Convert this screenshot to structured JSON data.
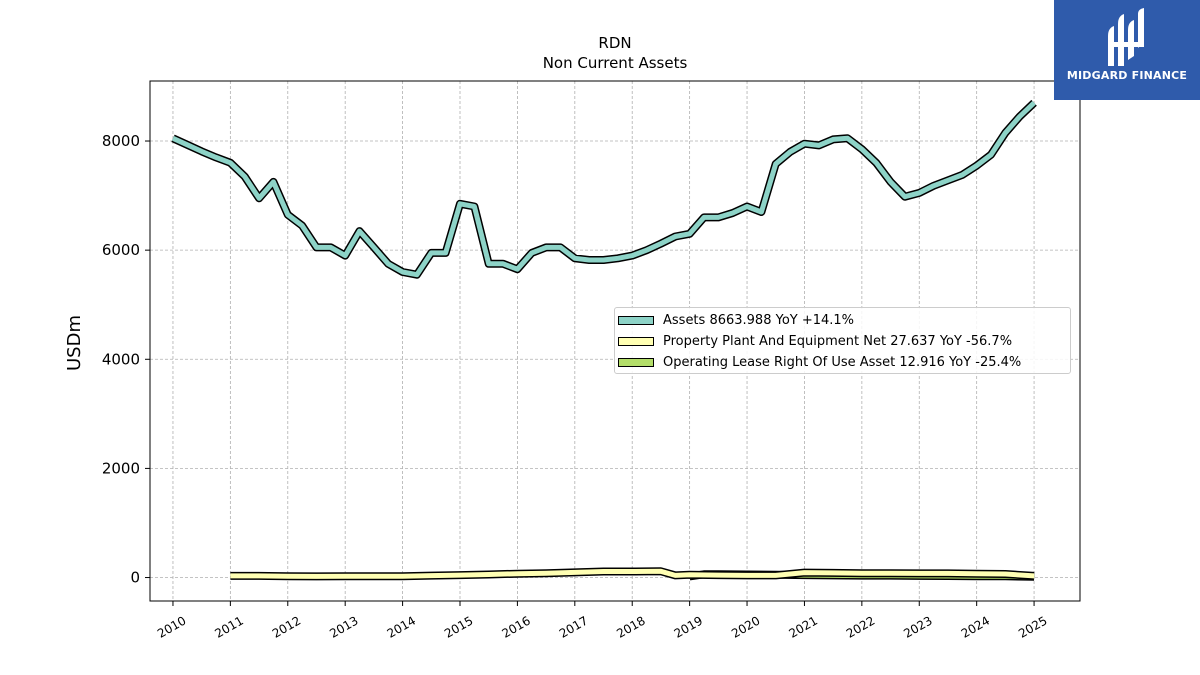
{
  "chart_data": {
    "type": "line",
    "title": "RDN",
    "subtitle": "Non Current  Assets",
    "ylabel": "USDm",
    "xlabel": "",
    "xlim": [
      2009.6,
      2025.8
    ],
    "ylim": [
      -430,
      9100
    ],
    "yticks": [
      0,
      2000,
      4000,
      6000,
      8000
    ],
    "xticks": [
      "2010",
      "2011",
      "2012",
      "2013",
      "2014",
      "2015",
      "2016",
      "2017",
      "2018",
      "2019",
      "2020",
      "2021",
      "2022",
      "2023",
      "2024",
      "2025"
    ],
    "grid": true,
    "legend_position": "center-right",
    "series": [
      {
        "name": "Assets  8663.988 YoY +14.1%",
        "color": "#8dd3c7",
        "x": [
          2010.0,
          2010.25,
          2010.5,
          2010.75,
          2011.0,
          2011.25,
          2011.5,
          2011.75,
          2012.0,
          2012.25,
          2012.5,
          2012.75,
          2013.0,
          2013.25,
          2013.5,
          2013.75,
          2014.0,
          2014.25,
          2014.5,
          2014.75,
          2015.0,
          2015.25,
          2015.5,
          2015.75,
          2016.0,
          2016.25,
          2016.5,
          2016.75,
          2017.0,
          2017.25,
          2017.5,
          2017.75,
          2018.0,
          2018.25,
          2018.5,
          2018.75,
          2019.0,
          2019.25,
          2019.5,
          2019.75,
          2020.0,
          2020.25,
          2020.5,
          2020.75,
          2021.0,
          2021.25,
          2021.5,
          2021.75,
          2022.0,
          2022.25,
          2022.5,
          2022.75,
          2023.0,
          2023.25,
          2023.5,
          2023.75,
          2024.0,
          2024.25,
          2024.5,
          2024.75,
          2025.0
        ],
        "values": [
          8050,
          7930,
          7810,
          7700,
          7600,
          7350,
          6950,
          7250,
          6650,
          6450,
          6050,
          6050,
          5900,
          6350,
          6050,
          5750,
          5600,
          5550,
          5950,
          5950,
          6850,
          6800,
          5750,
          5750,
          5650,
          5950,
          6050,
          6050,
          5850,
          5820,
          5820,
          5850,
          5900,
          6000,
          6120,
          6250,
          6300,
          6600,
          6600,
          6680,
          6800,
          6700,
          7580,
          7800,
          7950,
          7920,
          8030,
          8050,
          7850,
          7600,
          7250,
          6980,
          7050,
          7180,
          7280,
          7380,
          7550,
          7750,
          8150,
          8450,
          8700
        ]
      },
      {
        "name": "Property Plant And Equipment Net  27.637 YoY -56.7%",
        "color": "#ffffb3",
        "x": [
          2011.0,
          2011.5,
          2012.0,
          2012.5,
          2013.0,
          2013.5,
          2014.0,
          2014.5,
          2015.0,
          2015.5,
          2016.0,
          2016.5,
          2017.0,
          2017.5,
          2018.0,
          2018.5,
          2018.75,
          2019.0,
          2019.5,
          2020.0,
          2020.5,
          2021.0,
          2021.5,
          2022.0,
          2022.5,
          2023.0,
          2023.5,
          2024.0,
          2024.5,
          2025.0
        ],
        "values": [
          30,
          30,
          25,
          20,
          22,
          22,
          25,
          35,
          45,
          55,
          70,
          80,
          95,
          110,
          110,
          115,
          40,
          50,
          45,
          40,
          40,
          90,
          85,
          80,
          80,
          75,
          75,
          70,
          65,
          30
        ]
      },
      {
        "name": "Operating Lease Right Of Use Asset  12.916 YoY -25.4%",
        "color": "#b3de69",
        "x": [
          2019.0,
          2019.25,
          2019.5,
          2020.0,
          2020.5,
          2021.0,
          2021.5,
          2022.0,
          2022.5,
          2023.0,
          2023.5,
          2024.0,
          2024.5,
          2025.0
        ],
        "values": [
          20,
          60,
          60,
          55,
          50,
          45,
          40,
          35,
          35,
          30,
          28,
          25,
          22,
          15
        ]
      }
    ]
  },
  "brand": {
    "name": "MIDGARD FINANCE",
    "color": "#2f5bab"
  }
}
